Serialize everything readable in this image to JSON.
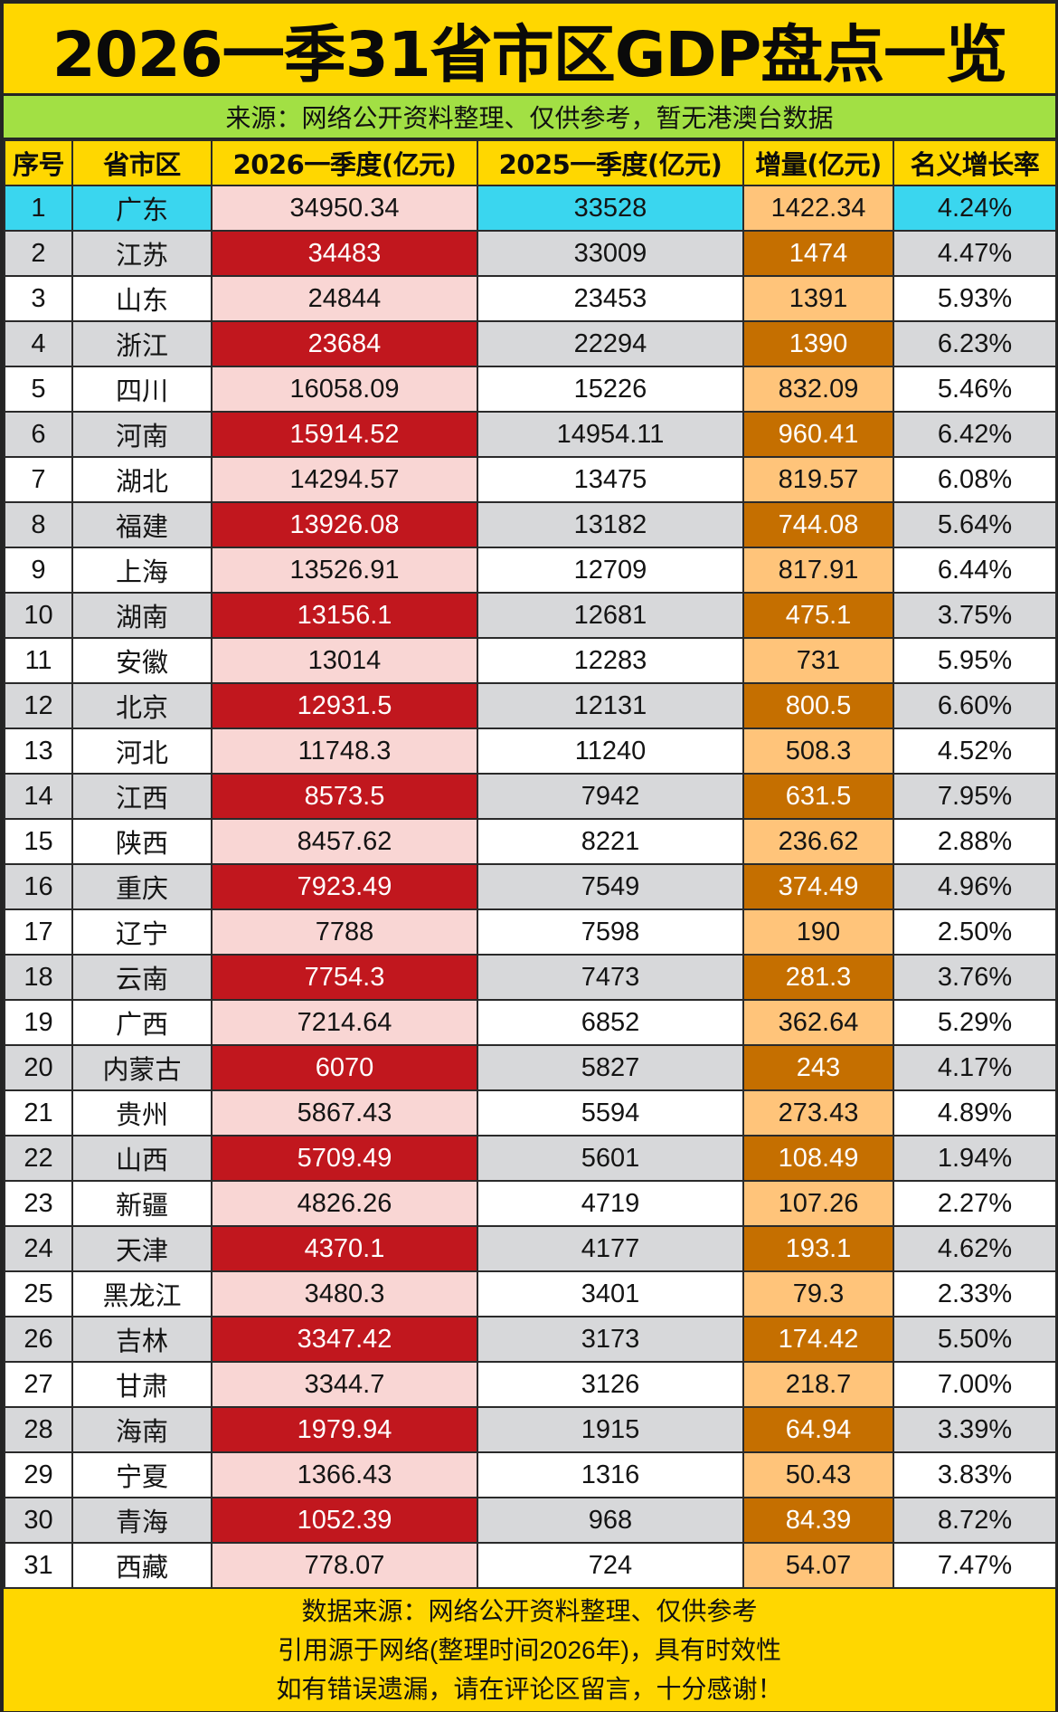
{
  "title": "2026一季31省市区GDP盘点一览",
  "subtitle": "来源：网络公开资料整理、仅供参考，暂无港澳台数据",
  "colors": {
    "title_bg": "#FFD700",
    "subtitle_bg": "#A2E044",
    "highlight_row": "#3AD6EF",
    "gray_row": "#D7D8DA",
    "gdp2026_light": "#F9D6D4",
    "gdp2026_dark": "#C1171E",
    "increase_light": "#FFC47A",
    "increase_dark": "#C56F00"
  },
  "table": {
    "headers": [
      "序号",
      "省市区",
      "2026一季度(亿元)",
      "2025一季度(亿元)",
      "增量(亿元)",
      "名义增长率"
    ],
    "rows": [
      {
        "rank": "1",
        "region": "广东",
        "gdp2026": "34950.34",
        "gdp2025": "33528",
        "increase": "1422.34",
        "growth": "4.24%"
      },
      {
        "rank": "2",
        "region": "江苏",
        "gdp2026": "34483",
        "gdp2025": "33009",
        "increase": "1474",
        "growth": "4.47%"
      },
      {
        "rank": "3",
        "region": "山东",
        "gdp2026": "24844",
        "gdp2025": "23453",
        "increase": "1391",
        "growth": "5.93%"
      },
      {
        "rank": "4",
        "region": "浙江",
        "gdp2026": "23684",
        "gdp2025": "22294",
        "increase": "1390",
        "growth": "6.23%"
      },
      {
        "rank": "5",
        "region": "四川",
        "gdp2026": "16058.09",
        "gdp2025": "15226",
        "increase": "832.09",
        "growth": "5.46%"
      },
      {
        "rank": "6",
        "region": "河南",
        "gdp2026": "15914.52",
        "gdp2025": "14954.11",
        "increase": "960.41",
        "growth": "6.42%"
      },
      {
        "rank": "7",
        "region": "湖北",
        "gdp2026": "14294.57",
        "gdp2025": "13475",
        "increase": "819.57",
        "growth": "6.08%"
      },
      {
        "rank": "8",
        "region": "福建",
        "gdp2026": "13926.08",
        "gdp2025": "13182",
        "increase": "744.08",
        "growth": "5.64%"
      },
      {
        "rank": "9",
        "region": "上海",
        "gdp2026": "13526.91",
        "gdp2025": "12709",
        "increase": "817.91",
        "growth": "6.44%"
      },
      {
        "rank": "10",
        "region": "湖南",
        "gdp2026": "13156.1",
        "gdp2025": "12681",
        "increase": "475.1",
        "growth": "3.75%"
      },
      {
        "rank": "11",
        "region": "安徽",
        "gdp2026": "13014",
        "gdp2025": "12283",
        "increase": "731",
        "growth": "5.95%"
      },
      {
        "rank": "12",
        "region": "北京",
        "gdp2026": "12931.5",
        "gdp2025": "12131",
        "increase": "800.5",
        "growth": "6.60%"
      },
      {
        "rank": "13",
        "region": "河北",
        "gdp2026": "11748.3",
        "gdp2025": "11240",
        "increase": "508.3",
        "growth": "4.52%"
      },
      {
        "rank": "14",
        "region": "江西",
        "gdp2026": "8573.5",
        "gdp2025": "7942",
        "increase": "631.5",
        "growth": "7.95%"
      },
      {
        "rank": "15",
        "region": "陕西",
        "gdp2026": "8457.62",
        "gdp2025": "8221",
        "increase": "236.62",
        "growth": "2.88%"
      },
      {
        "rank": "16",
        "region": "重庆",
        "gdp2026": "7923.49",
        "gdp2025": "7549",
        "increase": "374.49",
        "growth": "4.96%"
      },
      {
        "rank": "17",
        "region": "辽宁",
        "gdp2026": "7788",
        "gdp2025": "7598",
        "increase": "190",
        "growth": "2.50%"
      },
      {
        "rank": "18",
        "region": "云南",
        "gdp2026": "7754.3",
        "gdp2025": "7473",
        "increase": "281.3",
        "growth": "3.76%"
      },
      {
        "rank": "19",
        "region": "广西",
        "gdp2026": "7214.64",
        "gdp2025": "6852",
        "increase": "362.64",
        "growth": "5.29%"
      },
      {
        "rank": "20",
        "region": "内蒙古",
        "gdp2026": "6070",
        "gdp2025": "5827",
        "increase": "243",
        "growth": "4.17%"
      },
      {
        "rank": "21",
        "region": "贵州",
        "gdp2026": "5867.43",
        "gdp2025": "5594",
        "increase": "273.43",
        "growth": "4.89%"
      },
      {
        "rank": "22",
        "region": "山西",
        "gdp2026": "5709.49",
        "gdp2025": "5601",
        "increase": "108.49",
        "growth": "1.94%"
      },
      {
        "rank": "23",
        "region": "新疆",
        "gdp2026": "4826.26",
        "gdp2025": "4719",
        "increase": "107.26",
        "growth": "2.27%"
      },
      {
        "rank": "24",
        "region": "天津",
        "gdp2026": "4370.1",
        "gdp2025": "4177",
        "increase": "193.1",
        "growth": "4.62%"
      },
      {
        "rank": "25",
        "region": "黑龙江",
        "gdp2026": "3480.3",
        "gdp2025": "3401",
        "increase": "79.3",
        "growth": "2.33%"
      },
      {
        "rank": "26",
        "region": "吉林",
        "gdp2026": "3347.42",
        "gdp2025": "3173",
        "increase": "174.42",
        "growth": "5.50%"
      },
      {
        "rank": "27",
        "region": "甘肃",
        "gdp2026": "3344.7",
        "gdp2025": "3126",
        "increase": "218.7",
        "growth": "7.00%"
      },
      {
        "rank": "28",
        "region": "海南",
        "gdp2026": "1979.94",
        "gdp2025": "1915",
        "increase": "64.94",
        "growth": "3.39%"
      },
      {
        "rank": "29",
        "region": "宁夏",
        "gdp2026": "1366.43",
        "gdp2025": "1316",
        "increase": "50.43",
        "growth": "3.83%"
      },
      {
        "rank": "30",
        "region": "青海",
        "gdp2026": "1052.39",
        "gdp2025": "968",
        "increase": "84.39",
        "growth": "8.72%"
      },
      {
        "rank": "31",
        "region": "西藏",
        "gdp2026": "778.07",
        "gdp2025": "724",
        "increase": "54.07",
        "growth": "7.47%"
      }
    ]
  },
  "footer": {
    "lines": [
      "数据来源：网络公开资料整理、仅供参考",
      "引用源于网络(整理时间2026年)，具有时效性",
      "如有错误遗漏，请在评论区留言，十分感谢！"
    ]
  }
}
